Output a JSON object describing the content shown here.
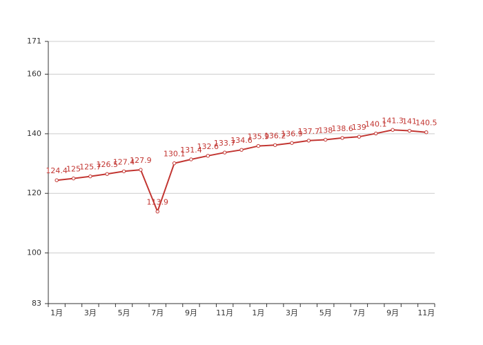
{
  "chart_data": {
    "type": "line",
    "categories": [
      "1月",
      null,
      "3月",
      null,
      "5月",
      null,
      "7月",
      null,
      "9月",
      null,
      "11月",
      null,
      "1月",
      null,
      "3月",
      null,
      "5月",
      null,
      "7月",
      null,
      "9月",
      null,
      "11月"
    ],
    "values": [
      124.4,
      125,
      125.7,
      126.5,
      127.4,
      127.9,
      113.9,
      130.1,
      131.4,
      132.6,
      133.7,
      134.6,
      135.9,
      136.2,
      136.9,
      137.7,
      138,
      138.6,
      139,
      140.1,
      141.3,
      141,
      140.5
    ],
    "color": "#c23531",
    "ylim": [
      83,
      171
    ],
    "yticks": [
      83,
      100,
      120,
      140,
      160,
      171
    ],
    "grid": true
  }
}
